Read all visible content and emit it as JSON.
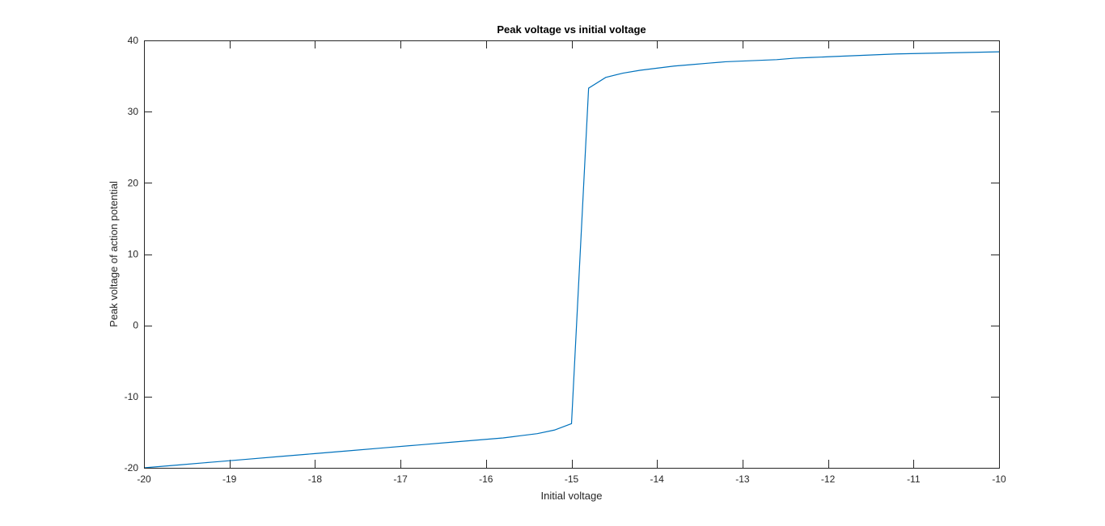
{
  "chart_data": {
    "type": "line",
    "title": "Peak voltage vs initial voltage",
    "xlabel": "Initial voltage",
    "ylabel": "Peak voltage of action potential",
    "xlim": [
      -20,
      -10
    ],
    "ylim": [
      -20,
      40
    ],
    "xticks": [
      -20,
      -19,
      -18,
      -17,
      -16,
      -15,
      -14,
      -13,
      -12,
      -11,
      -10
    ],
    "yticks": [
      -20,
      -10,
      0,
      10,
      20,
      30,
      40
    ],
    "xtick_labels": [
      "-20",
      "-19",
      "-18",
      "-17",
      "-16",
      "-15",
      "-14",
      "-13",
      "-12",
      "-11",
      "-10"
    ],
    "ytick_labels": [
      "-20",
      "-10",
      "0",
      "10",
      "20",
      "30",
      "40"
    ],
    "grid": false,
    "box": true,
    "series": [
      {
        "color": "#0072bd",
        "x": [
          -20,
          -19.6,
          -19.2,
          -18.8,
          -18.4,
          -18.0,
          -17.6,
          -17.2,
          -16.8,
          -16.4,
          -16.0,
          -15.8,
          -15.6,
          -15.4,
          -15.2,
          -15.0,
          -14.8,
          -14.6,
          -14.4,
          -14.2,
          -14.0,
          -13.8,
          -13.6,
          -13.4,
          -13.2,
          -13.0,
          -12.8,
          -12.6,
          -12.4,
          -12.2,
          -12.0,
          -11.6,
          -11.2,
          -10.8,
          -10.4,
          -10.0
        ],
        "y": [
          -20.0,
          -19.6,
          -19.2,
          -18.8,
          -18.4,
          -18.0,
          -17.6,
          -17.2,
          -16.8,
          -16.4,
          -16.0,
          -15.8,
          -15.5,
          -15.2,
          -14.7,
          -13.8,
          33.3,
          34.8,
          35.4,
          35.8,
          36.1,
          36.4,
          36.6,
          36.8,
          37.0,
          37.1,
          37.2,
          37.3,
          37.5,
          37.6,
          37.7,
          37.9,
          38.1,
          38.2,
          38.3,
          38.4
        ]
      }
    ]
  }
}
